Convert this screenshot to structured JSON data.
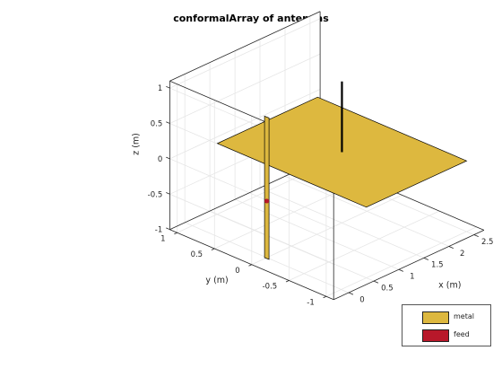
{
  "chart_data": {
    "type": "3d-geometry",
    "title": "conformalArray of antennas",
    "xlabel": "x (m)",
    "ylabel": "y (m)",
    "zlabel": "z (m)",
    "xlim": [
      -0.3,
      2.7
    ],
    "ylim": [
      -1.1,
      1.1
    ],
    "zlim": [
      -1,
      1.1
    ],
    "xticks": [
      "0",
      "0.5",
      "1",
      "1.5",
      "2",
      "2.5"
    ],
    "yticks": [
      "-1",
      "-0.5",
      "0",
      "0.5",
      "1"
    ],
    "zticks": [
      "-1",
      "-0.5",
      "0",
      "0.5",
      "1"
    ],
    "grid": true,
    "legend_position": "bottom-right",
    "colors": {
      "metal": "#DDB83F",
      "feed": "#B8182A"
    },
    "legend": [
      {
        "name": "metal",
        "color": "#DDB83F"
      },
      {
        "name": "feed",
        "color": "#B8182A"
      }
    ],
    "objects": {
      "ground_plane": {
        "x": [
          0.5,
          2.5
        ],
        "y": [
          -1,
          1
        ],
        "z": 0
      },
      "dipole": {
        "x": 0,
        "y": 0,
        "z": [
          -1,
          1
        ]
      },
      "monopole": {
        "x": 1.5,
        "y": 0,
        "z": [
          0,
          1
        ]
      },
      "feed_point": {
        "x": 0,
        "y": 0,
        "z": -0.2
      }
    }
  }
}
